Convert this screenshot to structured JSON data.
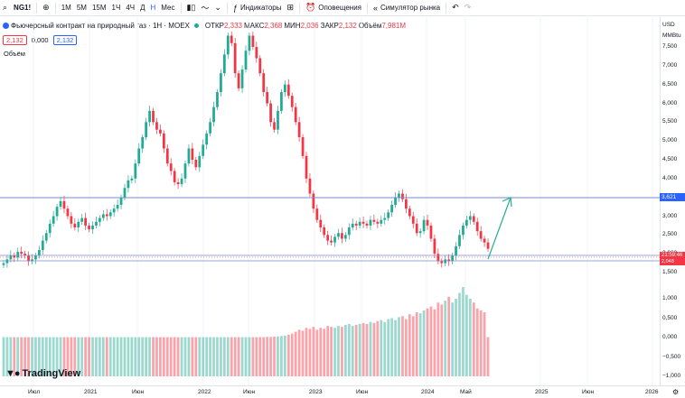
{
  "toolbar": {
    "symbol": "NG1!",
    "add_icon": "plus-circle-icon",
    "intervals": [
      "1M",
      "5M",
      "15M",
      "1Ч",
      "4Ч",
      "Д",
      "Н",
      "Мес"
    ],
    "active_interval": "Н",
    "indicators_label": "Индикаторы",
    "alerts_label": "Оповещения",
    "replay_label": "Симулятор рынка"
  },
  "legend": {
    "title": "Фьючерсный контракт на природный газ · 1Н · MOEX",
    "open_label": "ОТКР",
    "open_value": "2,333",
    "high_label": "МАКС",
    "high_value": "2,368",
    "low_label": "МИН",
    "low_value": "2,036",
    "close_label": "ЗАКР",
    "close_value": "2,132",
    "volume_label": "Объём",
    "volume_value": "7,981M"
  },
  "boxes": {
    "bid": "2,132",
    "spread": "0,000",
    "ask": "2,132"
  },
  "volume_pane_label": "Объём",
  "axis": {
    "currency": "USD",
    "unit": "MMBtu",
    "price_ticks": [
      "7,500",
      "7,000",
      "6,500",
      "6,000",
      "5,500",
      "5,000",
      "4,500",
      "4,000",
      "3,500",
      "3,000",
      "2,500",
      "2,000",
      "1,500"
    ],
    "volume_ticks": [
      "1,000",
      "0,500",
      "0,000",
      "−0,500",
      "−1,000"
    ],
    "level_tag": "3,621",
    "price_tag": "21:59:46",
    "price_tag_value": "2,048"
  },
  "x_ticks": [
    "Июл",
    "2021",
    "Июн",
    "2022",
    "Июн",
    "2023",
    "Июн",
    "2024",
    "Май",
    "2025",
    "Июн",
    "2026"
  ],
  "brand": "TradingView",
  "colors": {
    "up": "#22ab94",
    "down": "#f23645",
    "level_line": "#2962ff",
    "arrow": "#22ab94"
  },
  "chart_data": {
    "type": "candlestick",
    "ylim": [
      1.3,
      7.8
    ],
    "horizontal_levels": [
      3.621,
      2.132,
      2.048
    ],
    "close_series": [
      1.75,
      1.85,
      1.95,
      1.9,
      2.05,
      2.0,
      1.95,
      1.8,
      1.85,
      1.95,
      2.1,
      2.35,
      2.55,
      2.8,
      3.0,
      3.25,
      3.4,
      3.2,
      3.0,
      2.8,
      2.7,
      2.85,
      2.95,
      2.75,
      2.65,
      2.75,
      2.85,
      2.95,
      3.05,
      3.0,
      3.1,
      3.2,
      3.3,
      3.5,
      3.75,
      3.95,
      4.0,
      4.4,
      4.8,
      5.1,
      5.5,
      5.8,
      5.5,
      5.3,
      5.2,
      4.8,
      4.4,
      4.2,
      3.9,
      3.85,
      4.0,
      4.4,
      4.8,
      4.5,
      4.3,
      4.6,
      4.9,
      5.2,
      5.5,
      5.9,
      6.3,
      6.8,
      7.3,
      7.8,
      7.6,
      6.8,
      6.4,
      6.9,
      7.4,
      7.8,
      7.5,
      7.2,
      6.8,
      6.3,
      6.0,
      5.5,
      5.3,
      5.8,
      6.3,
      6.5,
      6.2,
      5.9,
      5.5,
      5.1,
      4.6,
      4.0,
      3.6,
      3.2,
      2.9,
      2.7,
      2.5,
      2.35,
      2.3,
      2.45,
      2.55,
      2.4,
      2.5,
      2.7,
      2.8,
      2.75,
      2.85,
      2.8,
      2.75,
      2.9,
      2.85,
      2.8,
      2.9,
      2.95,
      3.1,
      3.3,
      3.5,
      3.6,
      3.45,
      3.2,
      3.0,
      2.8,
      2.55,
      2.6,
      2.9,
      2.75,
      2.4,
      2.0,
      1.8,
      1.75,
      1.85,
      1.8,
      1.95,
      2.2,
      2.5,
      2.75,
      2.9,
      3.0,
      2.85,
      2.6,
      2.4,
      2.3,
      2.132
    ],
    "volume_series": [
      0.02,
      0.02,
      0.02,
      0.02,
      0.02,
      0.02,
      0.02,
      0.02,
      0.02,
      0.02,
      0.02,
      0.02,
      0.02,
      0.02,
      0.02,
      0.02,
      0.02,
      0.02,
      0.02,
      0.02,
      0.02,
      0.02,
      0.02,
      0.02,
      0.02,
      0.02,
      0.02,
      0.02,
      0.02,
      0.02,
      0.02,
      0.02,
      0.02,
      0.02,
      0.02,
      0.02,
      0.02,
      0.02,
      0.02,
      0.02,
      0.02,
      0.02,
      0.02,
      0.02,
      0.02,
      0.02,
      0.02,
      0.02,
      0.02,
      0.02,
      0.02,
      0.02,
      0.02,
      0.02,
      0.02,
      0.02,
      0.02,
      0.02,
      0.02,
      0.02,
      0.02,
      0.02,
      0.02,
      0.02,
      0.02,
      0.02,
      0.02,
      0.02,
      0.02,
      0.02,
      0.02,
      0.02,
      0.02,
      0.02,
      0.03,
      0.03,
      0.05,
      0.06,
      0.08,
      0.1,
      0.15,
      0.2,
      0.3,
      0.4,
      0.35,
      0.5,
      0.45,
      0.55,
      0.4,
      0.5,
      0.45,
      0.6,
      0.55,
      0.5,
      0.6,
      0.55,
      0.65,
      0.7,
      0.6,
      0.65,
      0.7,
      0.75,
      0.7,
      0.8,
      0.75,
      0.85,
      0.9,
      0.8,
      0.95,
      1.0,
      0.9,
      1.05,
      1.1,
      0.95,
      1.2,
      1.1,
      1.3,
      1.25,
      1.4,
      1.5,
      1.6,
      1.45,
      1.8,
      1.7,
      1.9,
      2.1,
      1.8,
      2.0,
      2.3,
      2.6,
      2.2,
      2.0,
      1.8,
      1.5,
      1.4,
      1.3
    ]
  }
}
